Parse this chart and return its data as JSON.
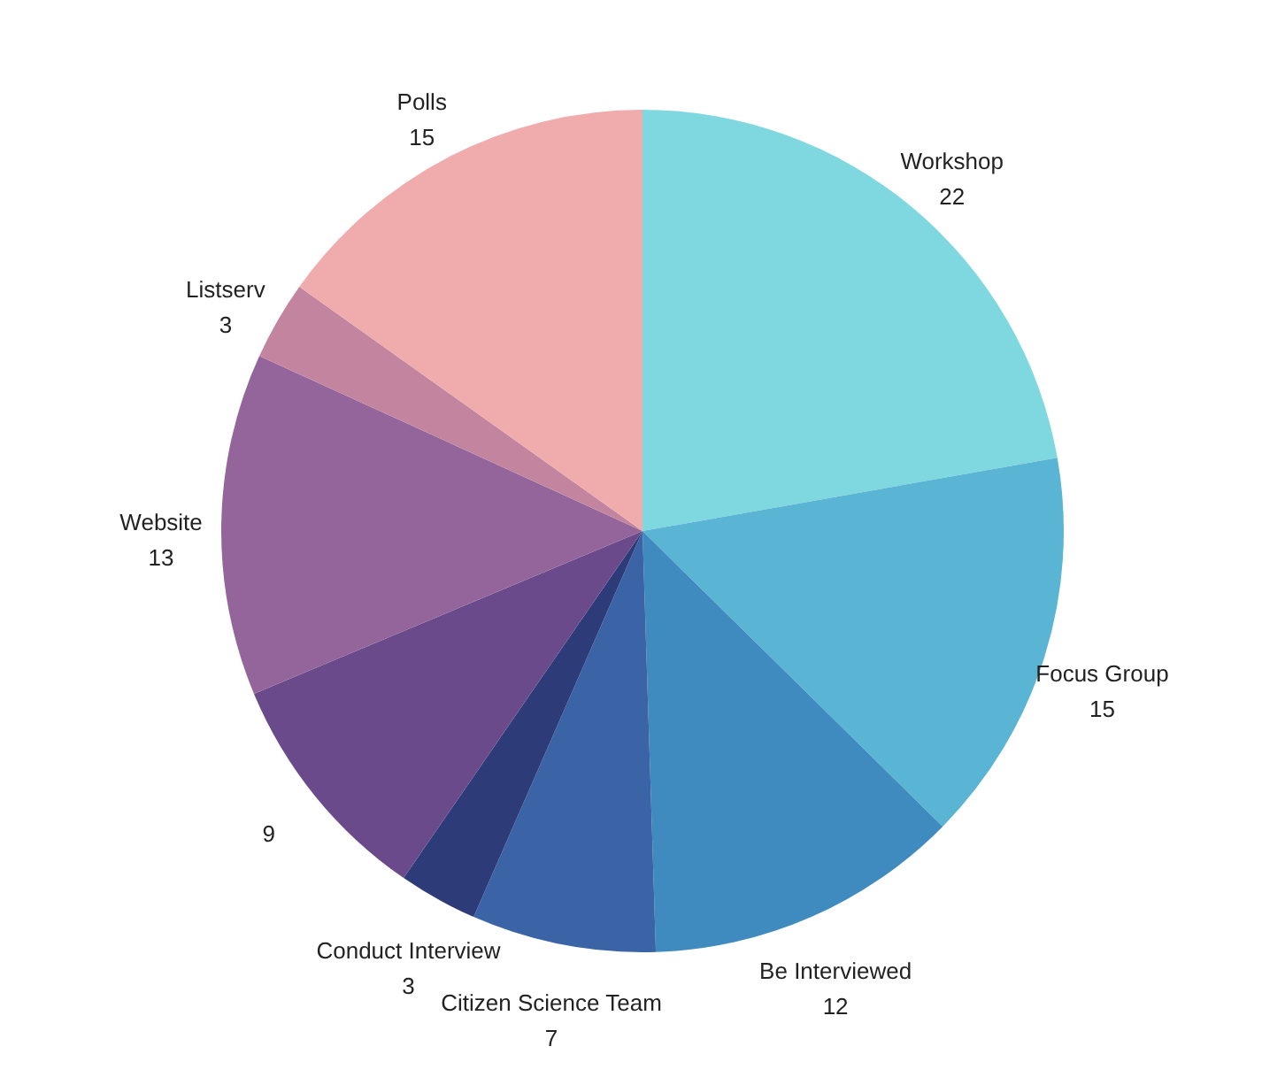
{
  "chart_data": {
    "type": "pie",
    "categories": [
      "Workshop",
      "Focus Group",
      "Be Interviewed",
      "Citizen Science Team",
      "Conduct Interview",
      null,
      "Website",
      "Listserv",
      "Polls"
    ],
    "values": [
      22,
      15,
      12,
      7,
      3,
      9,
      13,
      3,
      15
    ],
    "colors": [
      "#7fd8e0",
      "#5ab4d3",
      "#3f8bbf",
      "#3a64a5",
      "#2d3b78",
      "#6a4a8a",
      "#93659a",
      "#c2849f",
      "#f0abad"
    ],
    "data_labels": true,
    "legend": false
  }
}
